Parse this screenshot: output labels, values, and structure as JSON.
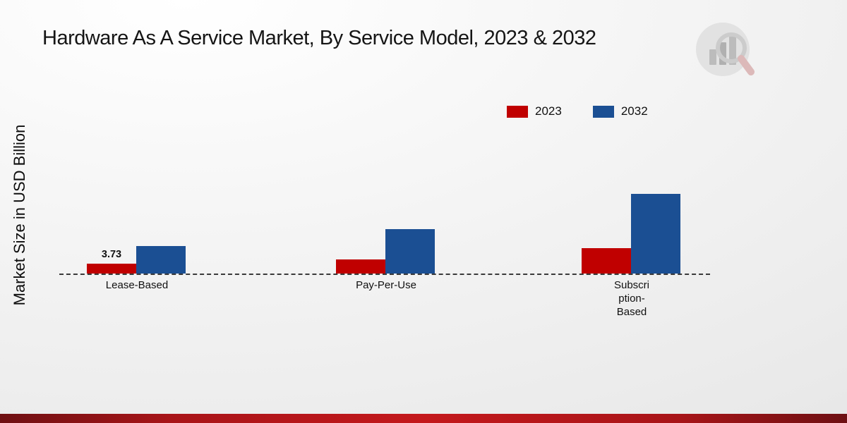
{
  "header": {
    "title": "Hardware As A Service Market, By Service Model, 2023 & 2032"
  },
  "axes": {
    "y_label": "Market Size in USD Billion"
  },
  "legend": {
    "items": [
      {
        "label": "2023",
        "color": "#c00000"
      },
      {
        "label": "2032",
        "color": "#1b4f93"
      }
    ]
  },
  "chart_data": {
    "type": "bar",
    "title": "Hardware As A Service Market, By Service Model, 2023 & 2032",
    "ylabel": "Market Size in USD Billion",
    "xlabel": "",
    "categories": [
      "Lease-Based",
      "Pay-Per-Use",
      "Subscription-Based"
    ],
    "category_display": [
      "Lease-Based",
      "Pay-Per-Use",
      "Subscri\nption-\nBased"
    ],
    "series": [
      {
        "name": "2023",
        "color": "#c00000",
        "values": [
          3.73,
          5.3,
          9.6
        ],
        "value_labels": [
          "3.73",
          "",
          ""
        ]
      },
      {
        "name": "2032",
        "color": "#1b4f93",
        "values": [
          10.4,
          16.8,
          30.2
        ],
        "value_labels": [
          "",
          "",
          ""
        ]
      }
    ],
    "ylim": [
      0,
      35
    ],
    "grid": false,
    "baseline_style": "dashed",
    "legend_position": "top-right"
  }
}
